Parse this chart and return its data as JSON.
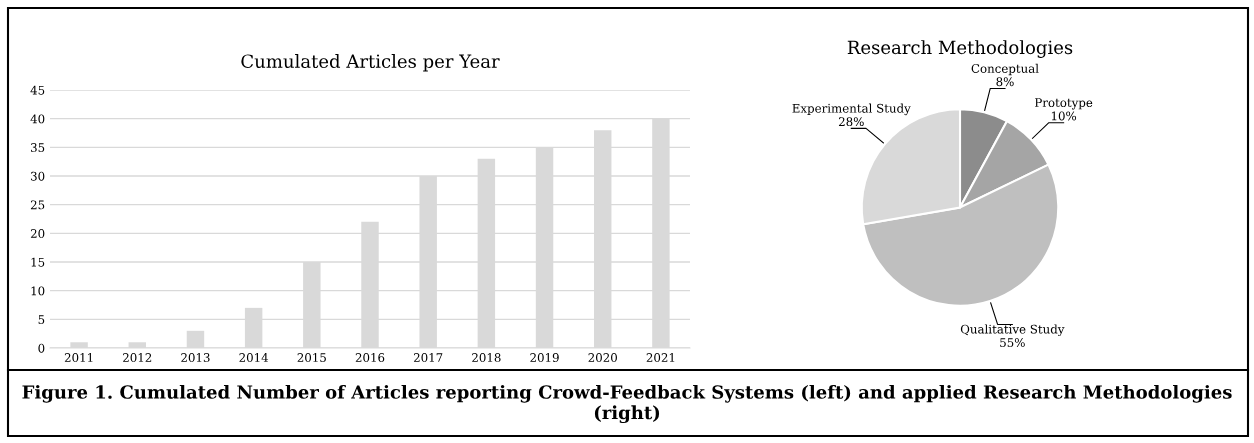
{
  "chart_data": [
    {
      "type": "bar",
      "title": "Cumulated Articles per Year",
      "categories": [
        "2011",
        "2012",
        "2013",
        "2014",
        "2015",
        "2016",
        "2017",
        "2018",
        "2019",
        "2020",
        "2021"
      ],
      "values": [
        1,
        1,
        3,
        7,
        15,
        22,
        30,
        33,
        35,
        38,
        40
      ],
      "color": "#d9d9d9",
      "ylim": [
        0,
        45
      ],
      "yticks": [
        0,
        5,
        10,
        15,
        20,
        25,
        30,
        35,
        40,
        45
      ],
      "grid": "y",
      "annotations": [
        "Figure 1. Cumulated Number of Articles reporting Crowd-Feedback Systems (left) and applied Research Methodologies (right)"
      ]
    },
    {
      "type": "pie",
      "title": "Research Methodologies",
      "categories": [
        "Conceptual",
        "Prototype",
        "Qualitative Study",
        "Experimental Study"
      ],
      "values": [
        8,
        10,
        55,
        28
      ],
      "colors": [
        "#8c8c8c",
        "#a5a5a5",
        "#bfbfbf",
        "#d9d9d9"
      ],
      "value_labels": [
        "8%",
        "10%",
        "55%",
        "28%"
      ]
    }
  ]
}
